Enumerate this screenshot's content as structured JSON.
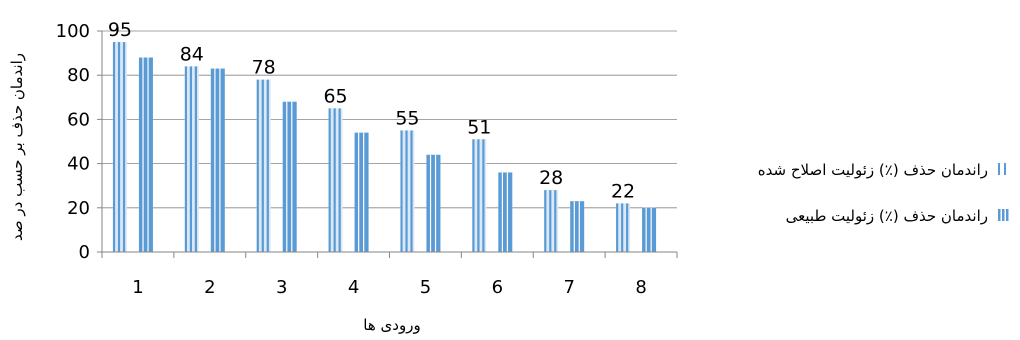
{
  "chart_data": {
    "type": "bar",
    "categories": [
      "1",
      "2",
      "3",
      "4",
      "5",
      "6",
      "7",
      "8"
    ],
    "series": [
      {
        "name": "راندمان حذف (٪) زئولیت اصلاح شده",
        "values": [
          95,
          84,
          78,
          65,
          55,
          51,
          28,
          22
        ]
      },
      {
        "name": "راندمان حذف (٪) زئولیت طبیعی",
        "values": [
          88,
          83,
          68,
          54,
          44,
          36,
          23,
          20
        ]
      }
    ],
    "data_labels": [
      "95",
      "84",
      "78",
      "65",
      "55",
      "51",
      "28",
      "22"
    ],
    "xlabel": "ورودی ها",
    "ylabel": "راندمان حذف بر حسب در صد",
    "ylim": [
      0,
      100
    ],
    "yticks": [
      0,
      20,
      40,
      60,
      80,
      100
    ],
    "grid": true,
    "legend_position": "right",
    "colors": {
      "bar": "#5b9bd5",
      "axis": "#868686",
      "grid": "#868686"
    }
  }
}
